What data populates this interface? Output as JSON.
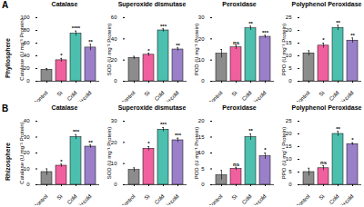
{
  "chart_data": [
    {
      "type": "bar",
      "panel": "A",
      "row_label": "Phyllosphere",
      "title": "Catalase",
      "y_label": "Catalase (U mg⁻¹ Protein)",
      "categories": [
        "Control",
        "Si",
        "Cold",
        "Si+cold"
      ],
      "values": [
        18,
        33,
        75,
        53
      ],
      "errors": [
        2,
        3,
        4,
        5
      ],
      "annotations": [
        null,
        "*",
        "****",
        "**"
      ],
      "colors": [
        "#8c8c8c",
        "#f0609e",
        "#4dbfae",
        "#9a80c8"
      ],
      "ylim": [
        0,
        100
      ],
      "yticks": [
        0,
        20,
        40,
        60,
        80,
        100
      ]
    },
    {
      "type": "bar",
      "panel": "A",
      "row_label": "Phyllosphere",
      "title": "Superoxide dismutase",
      "y_label": "SOD (U mg⁻¹ Protein)",
      "categories": [
        "Control",
        "Si",
        "Cold",
        "Si+cold"
      ],
      "values": [
        22,
        25,
        48,
        30
      ],
      "errors": [
        1.5,
        1.5,
        1.5,
        1.5
      ],
      "annotations": [
        null,
        "*",
        "***",
        "**"
      ],
      "colors": [
        "#8c8c8c",
        "#f0609e",
        "#4dbfae",
        "#9a80c8"
      ],
      "ylim": [
        0,
        60
      ],
      "yticks": [
        0,
        20,
        40,
        60
      ]
    },
    {
      "type": "bar",
      "panel": "A",
      "row_label": "Phyllosphere",
      "title": "Peroxidase",
      "y_label": "POD (U mg⁻¹ Protein)",
      "categories": [
        "Control",
        "Si",
        "Cold",
        "Si+cold"
      ],
      "values": [
        13,
        16,
        25,
        21
      ],
      "errors": [
        2,
        1,
        1,
        0.7
      ],
      "annotations": [
        null,
        "ns",
        "**",
        "***"
      ],
      "colors": [
        "#8c8c8c",
        "#f0609e",
        "#4dbfae",
        "#9a80c8"
      ],
      "ylim": [
        0,
        30
      ],
      "yticks": [
        0,
        10,
        20,
        30
      ]
    },
    {
      "type": "bar",
      "panel": "A",
      "row_label": "Phyllosphere",
      "title": "Polyphenol Peroxidase",
      "y_label": "PPO (U mg⁻¹ Protein)",
      "categories": [
        "Control",
        "Si",
        "Cold",
        "Si+cold"
      ],
      "values": [
        11,
        14,
        21,
        16
      ],
      "errors": [
        1,
        1,
        1,
        1
      ],
      "annotations": [
        null,
        "*",
        "**",
        "**"
      ],
      "colors": [
        "#8c8c8c",
        "#f0609e",
        "#4dbfae",
        "#9a80c8"
      ],
      "ylim": [
        0,
        25
      ],
      "yticks": [
        0,
        5,
        10,
        15,
        20,
        25
      ]
    },
    {
      "type": "bar",
      "panel": "B",
      "row_label": "Rhizosphere",
      "title": "Catalase",
      "y_label": "Catalase (U mg⁻¹ Protein)",
      "categories": [
        "Control",
        "Si",
        "Cold",
        "Si+cold"
      ],
      "values": [
        8,
        12,
        30,
        24
      ],
      "errors": [
        2,
        1,
        1.5,
        1
      ],
      "annotations": [
        null,
        "*",
        "***",
        "**"
      ],
      "colors": [
        "#8c8c8c",
        "#f0609e",
        "#4dbfae",
        "#9a80c8"
      ],
      "ylim": [
        0,
        40
      ],
      "yticks": [
        0,
        10,
        20,
        30,
        40
      ]
    },
    {
      "type": "bar",
      "panel": "B",
      "row_label": "Rhizosphere",
      "title": "Superoxide dismutase",
      "y_label": "SOD (U mg⁻¹ Protein)",
      "categories": [
        "Control",
        "Si",
        "Cold",
        "Si+cold"
      ],
      "values": [
        7,
        17,
        26,
        21
      ],
      "errors": [
        1,
        1,
        1,
        1
      ],
      "annotations": [
        null,
        "*",
        "***",
        "***"
      ],
      "colors": [
        "#8c8c8c",
        "#f0609e",
        "#4dbfae",
        "#9a80c8"
      ],
      "ylim": [
        0,
        30
      ],
      "yticks": [
        0,
        10,
        20,
        30
      ]
    },
    {
      "type": "bar",
      "panel": "B",
      "row_label": "Rhizosphere",
      "title": "Peroxidase",
      "y_label": "POD (U mg⁻¹ Protein)",
      "categories": [
        "Control",
        "Si",
        "Cold",
        "Si+cold"
      ],
      "values": [
        3,
        5,
        15,
        9
      ],
      "errors": [
        1.5,
        0.5,
        1,
        1
      ],
      "annotations": [
        null,
        "ns",
        "**",
        "*"
      ],
      "colors": [
        "#8c8c8c",
        "#f0609e",
        "#4dbfae",
        "#9a80c8"
      ],
      "ylim": [
        0,
        20
      ],
      "yticks": [
        0,
        5,
        10,
        15,
        20
      ]
    },
    {
      "type": "bar",
      "panel": "B",
      "row_label": "Rhizosphere",
      "title": "Polyphenol Peroxidase",
      "y_label": "PPO (U mg⁻¹ Protein)",
      "categories": [
        "Control",
        "Si",
        "Cold",
        "Si+cold"
      ],
      "values": [
        5,
        6.5,
        20,
        16
      ],
      "errors": [
        1.5,
        1,
        1,
        0.5
      ],
      "annotations": [
        null,
        "ns",
        "**",
        "*"
      ],
      "colors": [
        "#8c8c8c",
        "#f0609e",
        "#4dbfae",
        "#9a80c8"
      ],
      "ylim": [
        0,
        25
      ],
      "yticks": [
        0,
        5,
        10,
        15,
        20,
        25
      ]
    }
  ]
}
